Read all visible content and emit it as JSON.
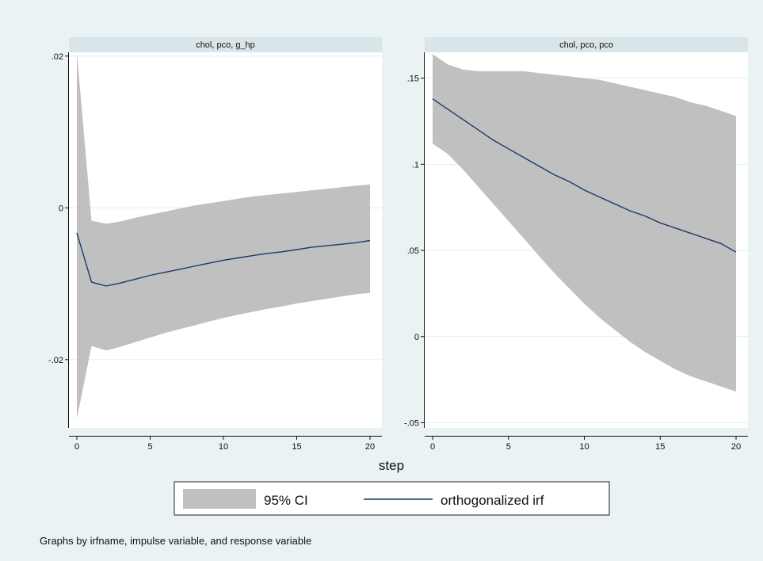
{
  "chart_data": {
    "type": "area",
    "xlabel": "step",
    "legend": {
      "placement": "bottom",
      "items": [
        {
          "label": "95% CI",
          "kind": "band",
          "color": "#c0c0c0"
        },
        {
          "label": "orthogonalized irf",
          "kind": "line",
          "color": "#1a3a6b"
        }
      ]
    },
    "note": "Graphs by irfname, impulse variable, and response variable",
    "colors": {
      "band": "#c0c0c0",
      "line": "#1a3a6b",
      "strip": "#d8e6ea",
      "plot_bg": "#ffffff",
      "page_bg": "#eaf2f3"
    },
    "x": [
      0,
      1,
      2,
      3,
      4,
      5,
      6,
      7,
      8,
      9,
      10,
      11,
      12,
      13,
      14,
      15,
      16,
      17,
      18,
      19,
      20
    ],
    "xticks": [
      0,
      5,
      10,
      15,
      20
    ],
    "xlim": [
      0,
      20
    ],
    "panels": [
      {
        "title": "chol, pco, g_hp",
        "ylim": [
          -0.029,
          0.0205
        ],
        "yticks": [
          -0.02,
          0,
          0.02
        ],
        "yticklabels": [
          "-.02",
          "0",
          ".02"
        ],
        "grid": true,
        "series": [
          {
            "name": "orthogonalized irf",
            "values": [
              -0.0033,
              -0.0098,
              -0.0103,
              -0.0099,
              -0.0094,
              -0.0089,
              -0.0085,
              -0.0081,
              -0.0077,
              -0.0073,
              -0.0069,
              -0.0066,
              -0.0063,
              -0.006,
              -0.0058,
              -0.0055,
              -0.0052,
              -0.005,
              -0.0048,
              -0.0046,
              -0.0043
            ]
          },
          {
            "name": "95% CI upper",
            "values": [
              0.0205,
              -0.0017,
              -0.0021,
              -0.0018,
              -0.0013,
              -0.0009,
              -0.0005,
              -0.0001,
              0.0003,
              0.0006,
              0.0009,
              0.0012,
              0.0015,
              0.0017,
              0.0019,
              0.0021,
              0.0023,
              0.0025,
              0.0027,
              0.0029,
              0.0031
            ]
          },
          {
            "name": "95% CI lower",
            "values": [
              -0.0278,
              -0.0182,
              -0.0188,
              -0.0183,
              -0.0177,
              -0.0171,
              -0.0165,
              -0.016,
              -0.0155,
              -0.015,
              -0.0145,
              -0.0141,
              -0.0137,
              -0.0133,
              -0.013,
              -0.0126,
              -0.0123,
              -0.012,
              -0.0117,
              -0.0114,
              -0.0112
            ]
          }
        ]
      },
      {
        "title": "chol, pco, pco",
        "ylim": [
          -0.053,
          0.165
        ],
        "yticks": [
          -0.05,
          0,
          0.05,
          0.1,
          0.15
        ],
        "yticklabels": [
          "-.05",
          "0",
          ".05",
          ".1",
          ".15"
        ],
        "grid": true,
        "series": [
          {
            "name": "orthogonalized irf",
            "values": [
              0.138,
              0.132,
              0.126,
              0.12,
              0.114,
              0.109,
              0.104,
              0.099,
              0.094,
              0.09,
              0.085,
              0.081,
              0.077,
              0.073,
              0.07,
              0.066,
              0.063,
              0.06,
              0.057,
              0.054,
              0.049
            ]
          },
          {
            "name": "95% CI upper",
            "values": [
              0.164,
              0.158,
              0.155,
              0.154,
              0.154,
              0.154,
              0.154,
              0.153,
              0.152,
              0.151,
              0.15,
              0.149,
              0.147,
              0.145,
              0.143,
              0.141,
              0.139,
              0.136,
              0.134,
              0.131,
              0.128
            ]
          },
          {
            "name": "95% CI lower",
            "values": [
              0.112,
              0.106,
              0.097,
              0.087,
              0.077,
              0.067,
              0.057,
              0.047,
              0.037,
              0.028,
              0.019,
              0.011,
              0.004,
              -0.003,
              -0.009,
              -0.014,
              -0.019,
              -0.023,
              -0.026,
              -0.029,
              -0.032
            ]
          }
        ]
      }
    ]
  }
}
